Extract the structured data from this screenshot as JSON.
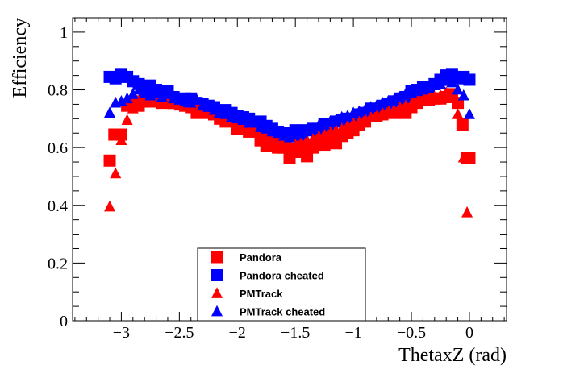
{
  "chart_data": {
    "type": "scatter",
    "title": "",
    "xlabel": "ThetaxZ (rad)",
    "ylabel": "Efficiency",
    "xlim": [
      -3.42,
      0.32
    ],
    "ylim": [
      0,
      1.05
    ],
    "x_ticks": [
      -3,
      -2.5,
      -2,
      -1.5,
      -1,
      -0.5,
      0
    ],
    "x_tick_labels": [
      "−3",
      "−2.5",
      "−2",
      "−1.5",
      "−1",
      "−0.5",
      "0"
    ],
    "y_ticks": [
      0,
      0.2,
      0.4,
      0.6,
      0.8,
      1
    ],
    "y_tick_labels": [
      "0",
      "0.2",
      "0.4",
      "0.6",
      "0.8",
      "1"
    ],
    "legend_position": "bottom-center",
    "series": [
      {
        "name": "Pandora",
        "marker": "square",
        "color": "#ff0000",
        "points": [
          [
            -3.1,
            0.555
          ],
          [
            -3.06,
            0.645
          ],
          [
            -3.0,
            0.645
          ],
          [
            -2.95,
            0.745
          ],
          [
            -2.9,
            0.76
          ],
          [
            -2.85,
            0.745
          ],
          [
            -2.8,
            0.76
          ],
          [
            -2.75,
            0.77
          ],
          [
            -2.7,
            0.76
          ],
          [
            -2.65,
            0.755
          ],
          [
            -2.6,
            0.775
          ],
          [
            -2.55,
            0.755
          ],
          [
            -2.5,
            0.765
          ],
          [
            -2.45,
            0.745
          ],
          [
            -2.4,
            0.74
          ],
          [
            -2.35,
            0.72
          ],
          [
            -2.3,
            0.735
          ],
          [
            -2.25,
            0.72
          ],
          [
            -2.2,
            0.715
          ],
          [
            -2.15,
            0.7
          ],
          [
            -2.1,
            0.69
          ],
          [
            -2.05,
            0.695
          ],
          [
            -2.0,
            0.665
          ],
          [
            -1.95,
            0.67
          ],
          [
            -1.9,
            0.655
          ],
          [
            -1.85,
            0.665
          ],
          [
            -1.8,
            0.625
          ],
          [
            -1.75,
            0.605
          ],
          [
            -1.7,
            0.615
          ],
          [
            -1.65,
            0.6
          ],
          [
            -1.6,
            0.6
          ],
          [
            -1.55,
            0.565
          ],
          [
            -1.5,
            0.585
          ],
          [
            -1.45,
            0.605
          ],
          [
            -1.4,
            0.57
          ],
          [
            -1.35,
            0.6
          ],
          [
            -1.3,
            0.625
          ],
          [
            -1.25,
            0.61
          ],
          [
            -1.2,
            0.64
          ],
          [
            -1.15,
            0.615
          ],
          [
            -1.1,
            0.64
          ],
          [
            -1.05,
            0.65
          ],
          [
            -1.0,
            0.66
          ],
          [
            -0.95,
            0.68
          ],
          [
            -0.9,
            0.69
          ],
          [
            -0.85,
            0.71
          ],
          [
            -0.8,
            0.71
          ],
          [
            -0.75,
            0.715
          ],
          [
            -0.7,
            0.73
          ],
          [
            -0.65,
            0.72
          ],
          [
            -0.6,
            0.73
          ],
          [
            -0.55,
            0.72
          ],
          [
            -0.5,
            0.74
          ],
          [
            -0.45,
            0.755
          ],
          [
            -0.4,
            0.77
          ],
          [
            -0.35,
            0.765
          ],
          [
            -0.3,
            0.77
          ],
          [
            -0.25,
            0.77
          ],
          [
            -0.2,
            0.775
          ],
          [
            -0.15,
            0.785
          ],
          [
            -0.1,
            0.755
          ],
          [
            -0.06,
            0.68
          ],
          [
            -0.02,
            0.565
          ],
          [
            0.0,
            0.565
          ]
        ]
      },
      {
        "name": "Pandora cheated",
        "marker": "square",
        "color": "#0000ff",
        "points": [
          [
            -3.1,
            0.845
          ],
          [
            -3.05,
            0.84
          ],
          [
            -3.0,
            0.855
          ],
          [
            -2.95,
            0.845
          ],
          [
            -2.9,
            0.83
          ],
          [
            -2.85,
            0.82
          ],
          [
            -2.8,
            0.8
          ],
          [
            -2.75,
            0.815
          ],
          [
            -2.7,
            0.8
          ],
          [
            -2.65,
            0.79
          ],
          [
            -2.6,
            0.795
          ],
          [
            -2.55,
            0.775
          ],
          [
            -2.5,
            0.76
          ],
          [
            -2.45,
            0.77
          ],
          [
            -2.4,
            0.77
          ],
          [
            -2.35,
            0.755
          ],
          [
            -2.3,
            0.75
          ],
          [
            -2.25,
            0.745
          ],
          [
            -2.2,
            0.74
          ],
          [
            -2.15,
            0.725
          ],
          [
            -2.1,
            0.73
          ],
          [
            -2.05,
            0.72
          ],
          [
            -2.0,
            0.71
          ],
          [
            -1.95,
            0.705
          ],
          [
            -1.9,
            0.7
          ],
          [
            -1.85,
            0.685
          ],
          [
            -1.8,
            0.69
          ],
          [
            -1.75,
            0.675
          ],
          [
            -1.7,
            0.665
          ],
          [
            -1.65,
            0.655
          ],
          [
            -1.6,
            0.65
          ],
          [
            -1.55,
            0.64
          ],
          [
            -1.5,
            0.66
          ],
          [
            -1.45,
            0.645
          ],
          [
            -1.4,
            0.66
          ],
          [
            -1.35,
            0.665
          ],
          [
            -1.3,
            0.66
          ],
          [
            -1.25,
            0.68
          ],
          [
            -1.2,
            0.675
          ],
          [
            -1.15,
            0.69
          ],
          [
            -1.1,
            0.695
          ],
          [
            -1.05,
            0.7
          ],
          [
            -1.0,
            0.7
          ],
          [
            -0.95,
            0.715
          ],
          [
            -0.9,
            0.72
          ],
          [
            -0.85,
            0.735
          ],
          [
            -0.8,
            0.73
          ],
          [
            -0.75,
            0.745
          ],
          [
            -0.7,
            0.75
          ],
          [
            -0.65,
            0.76
          ],
          [
            -0.6,
            0.77
          ],
          [
            -0.55,
            0.775
          ],
          [
            -0.5,
            0.795
          ],
          [
            -0.45,
            0.8
          ],
          [
            -0.4,
            0.81
          ],
          [
            -0.35,
            0.81
          ],
          [
            -0.3,
            0.82
          ],
          [
            -0.25,
            0.835
          ],
          [
            -0.2,
            0.85
          ],
          [
            -0.15,
            0.855
          ],
          [
            -0.1,
            0.84
          ],
          [
            -0.05,
            0.845
          ],
          [
            0.0,
            0.835
          ]
        ]
      },
      {
        "name": "PMTrack",
        "marker": "triangle",
        "color": "#ff0000",
        "points": [
          [
            -3.1,
            0.395
          ],
          [
            -3.05,
            0.51
          ],
          [
            -3.0,
            0.625
          ],
          [
            -2.95,
            0.695
          ],
          [
            -2.9,
            0.735
          ],
          [
            -2.85,
            0.76
          ],
          [
            -2.8,
            0.77
          ],
          [
            -2.75,
            0.755
          ],
          [
            -2.7,
            0.765
          ],
          [
            -2.65,
            0.76
          ],
          [
            -2.6,
            0.77
          ],
          [
            -2.55,
            0.75
          ],
          [
            -2.5,
            0.745
          ],
          [
            -2.45,
            0.76
          ],
          [
            -2.4,
            0.745
          ],
          [
            -2.35,
            0.745
          ],
          [
            -2.3,
            0.73
          ],
          [
            -2.25,
            0.735
          ],
          [
            -2.2,
            0.725
          ],
          [
            -2.15,
            0.715
          ],
          [
            -2.1,
            0.71
          ],
          [
            -2.05,
            0.7
          ],
          [
            -2.0,
            0.69
          ],
          [
            -1.95,
            0.68
          ],
          [
            -1.9,
            0.675
          ],
          [
            -1.85,
            0.665
          ],
          [
            -1.8,
            0.655
          ],
          [
            -1.75,
            0.64
          ],
          [
            -1.7,
            0.645
          ],
          [
            -1.65,
            0.63
          ],
          [
            -1.6,
            0.62
          ],
          [
            -1.55,
            0.615
          ],
          [
            -1.5,
            0.61
          ],
          [
            -1.45,
            0.615
          ],
          [
            -1.4,
            0.625
          ],
          [
            -1.35,
            0.63
          ],
          [
            -1.3,
            0.64
          ],
          [
            -1.25,
            0.645
          ],
          [
            -1.2,
            0.655
          ],
          [
            -1.15,
            0.66
          ],
          [
            -1.1,
            0.665
          ],
          [
            -1.05,
            0.675
          ],
          [
            -1.0,
            0.685
          ],
          [
            -0.95,
            0.69
          ],
          [
            -0.9,
            0.7
          ],
          [
            -0.85,
            0.705
          ],
          [
            -0.8,
            0.715
          ],
          [
            -0.75,
            0.72
          ],
          [
            -0.7,
            0.73
          ],
          [
            -0.65,
            0.73
          ],
          [
            -0.6,
            0.74
          ],
          [
            -0.55,
            0.745
          ],
          [
            -0.5,
            0.75
          ],
          [
            -0.45,
            0.76
          ],
          [
            -0.4,
            0.765
          ],
          [
            -0.35,
            0.77
          ],
          [
            -0.3,
            0.775
          ],
          [
            -0.25,
            0.78
          ],
          [
            -0.2,
            0.79
          ],
          [
            -0.15,
            0.785
          ],
          [
            -0.1,
            0.715
          ],
          [
            -0.05,
            0.565
          ],
          [
            -0.02,
            0.375
          ]
        ]
      },
      {
        "name": "PMTrack cheated",
        "marker": "triangle",
        "color": "#0000ff",
        "points": [
          [
            -3.1,
            0.72
          ],
          [
            -3.05,
            0.755
          ],
          [
            -3.0,
            0.76
          ],
          [
            -2.95,
            0.77
          ],
          [
            -2.9,
            0.785
          ],
          [
            -2.85,
            0.8
          ],
          [
            -2.8,
            0.79
          ],
          [
            -2.75,
            0.78
          ],
          [
            -2.7,
            0.79
          ],
          [
            -2.65,
            0.775
          ],
          [
            -2.6,
            0.785
          ],
          [
            -2.55,
            0.77
          ],
          [
            -2.5,
            0.765
          ],
          [
            -2.45,
            0.76
          ],
          [
            -2.4,
            0.755
          ],
          [
            -2.35,
            0.765
          ],
          [
            -2.3,
            0.745
          ],
          [
            -2.25,
            0.74
          ],
          [
            -2.2,
            0.73
          ],
          [
            -2.15,
            0.72
          ],
          [
            -2.1,
            0.715
          ],
          [
            -2.05,
            0.705
          ],
          [
            -2.0,
            0.7
          ],
          [
            -1.95,
            0.695
          ],
          [
            -1.9,
            0.685
          ],
          [
            -1.85,
            0.685
          ],
          [
            -1.8,
            0.67
          ],
          [
            -1.75,
            0.665
          ],
          [
            -1.7,
            0.655
          ],
          [
            -1.65,
            0.65
          ],
          [
            -1.6,
            0.64
          ],
          [
            -1.55,
            0.635
          ],
          [
            -1.5,
            0.645
          ],
          [
            -1.45,
            0.65
          ],
          [
            -1.4,
            0.655
          ],
          [
            -1.35,
            0.665
          ],
          [
            -1.3,
            0.675
          ],
          [
            -1.25,
            0.68
          ],
          [
            -1.2,
            0.69
          ],
          [
            -1.15,
            0.695
          ],
          [
            -1.1,
            0.705
          ],
          [
            -1.05,
            0.71
          ],
          [
            -1.0,
            0.72
          ],
          [
            -0.95,
            0.725
          ],
          [
            -0.9,
            0.73
          ],
          [
            -0.85,
            0.74
          ],
          [
            -0.8,
            0.745
          ],
          [
            -0.75,
            0.755
          ],
          [
            -0.7,
            0.76
          ],
          [
            -0.65,
            0.765
          ],
          [
            -0.6,
            0.775
          ],
          [
            -0.55,
            0.785
          ],
          [
            -0.5,
            0.79
          ],
          [
            -0.45,
            0.795
          ],
          [
            -0.4,
            0.8
          ],
          [
            -0.35,
            0.81
          ],
          [
            -0.3,
            0.815
          ],
          [
            -0.25,
            0.82
          ],
          [
            -0.2,
            0.83
          ],
          [
            -0.15,
            0.825
          ],
          [
            -0.1,
            0.8
          ],
          [
            -0.05,
            0.78
          ],
          [
            0.0,
            0.715
          ]
        ]
      }
    ]
  }
}
